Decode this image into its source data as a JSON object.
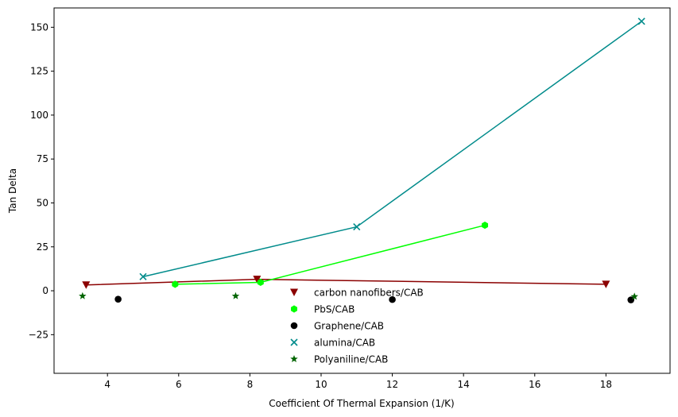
{
  "chart_data": {
    "type": "scatter",
    "title": "",
    "xlabel": "Coefficient Of Thermal Expansion (1/K)",
    "ylabel": "Tan Delta",
    "xlim": [
      2.5,
      19.8
    ],
    "ylim": [
      -47,
      161
    ],
    "xticks": [
      4,
      6,
      8,
      10,
      12,
      14,
      16,
      18
    ],
    "yticks": [
      -25,
      0,
      25,
      50,
      75,
      100,
      125,
      150
    ],
    "xtick_labels": [
      "4",
      "6",
      "8",
      "10",
      "12",
      "14",
      "16",
      "18"
    ],
    "ytick_labels": [
      "−25",
      "0",
      "25",
      "50",
      "75",
      "100",
      "125",
      "150"
    ],
    "grid": false,
    "legend_position": "lower-center",
    "series": [
      {
        "name": "carbon nanofibers/CAB",
        "marker": "triangle-down",
        "color": "#8b0000",
        "line": true,
        "x": [
          3.4,
          8.2,
          18.0
        ],
        "y": [
          3.3,
          6.5,
          3.7
        ]
      },
      {
        "name": "PbS/CAB",
        "marker": "hexagon",
        "color": "#00ff00",
        "line": true,
        "x": [
          5.9,
          8.3,
          14.6
        ],
        "y": [
          3.7,
          4.8,
          37.3
        ]
      },
      {
        "name": "Graphene/CAB",
        "marker": "circle",
        "color": "#000000",
        "line": false,
        "x": [
          4.3,
          12.0,
          18.7
        ],
        "y": [
          -4.8,
          -5.0,
          -5.2
        ]
      },
      {
        "name": "alumina/CAB",
        "marker": "x",
        "color": "#008b8b",
        "line": true,
        "x": [
          5.0,
          11.0,
          19.0
        ],
        "y": [
          8.0,
          36.4,
          153.4
        ]
      },
      {
        "name": "Polyaniline/CAB",
        "marker": "star",
        "color": "#006400",
        "line": false,
        "x": [
          3.3,
          7.6,
          18.8
        ],
        "y": [
          -3.0,
          -3.0,
          -3.3
        ]
      }
    ]
  }
}
